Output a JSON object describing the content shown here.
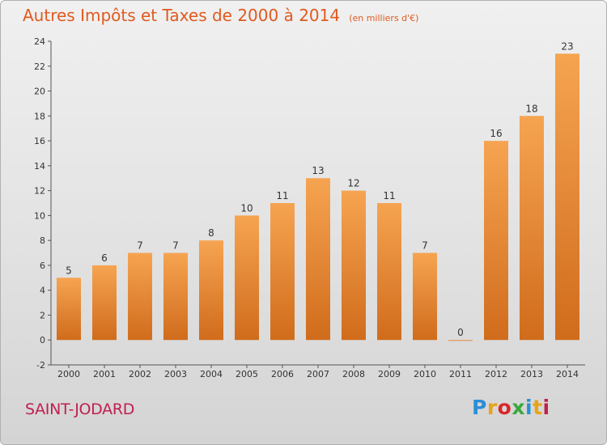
{
  "header": {
    "title": "Autres Impôts et Taxes de 2000 à 2014",
    "subtitle": "(en milliers d'€)"
  },
  "footer": {
    "commune": "SAINT-JODARD",
    "logo": {
      "letters": [
        "P",
        "r",
        "o",
        "x",
        "i",
        "t",
        "i"
      ],
      "colors": [
        "#2a8fd6",
        "#e8a317",
        "#d9262b",
        "#39a93c",
        "#2a8fd6",
        "#e8a317",
        "#c0204f"
      ]
    }
  },
  "colors": {
    "title": "#e05a1f",
    "bar_top": "#f6a451",
    "bar_bottom": "#d06c1c",
    "commune": "#c0204f"
  },
  "chart_data": {
    "type": "bar",
    "categories": [
      "2000",
      "2001",
      "2002",
      "2003",
      "2004",
      "2005",
      "2006",
      "2007",
      "2008",
      "2009",
      "2010",
      "2011",
      "2012",
      "2013",
      "2014"
    ],
    "values": [
      5,
      6,
      7,
      7,
      8,
      10,
      11,
      13,
      12,
      11,
      7,
      0,
      16,
      18,
      23
    ],
    "yticks": [
      -2,
      0,
      2,
      4,
      6,
      8,
      10,
      12,
      14,
      16,
      18,
      20,
      22,
      24
    ],
    "ylim": [
      -2,
      24
    ],
    "grid": false,
    "legend": "none"
  }
}
